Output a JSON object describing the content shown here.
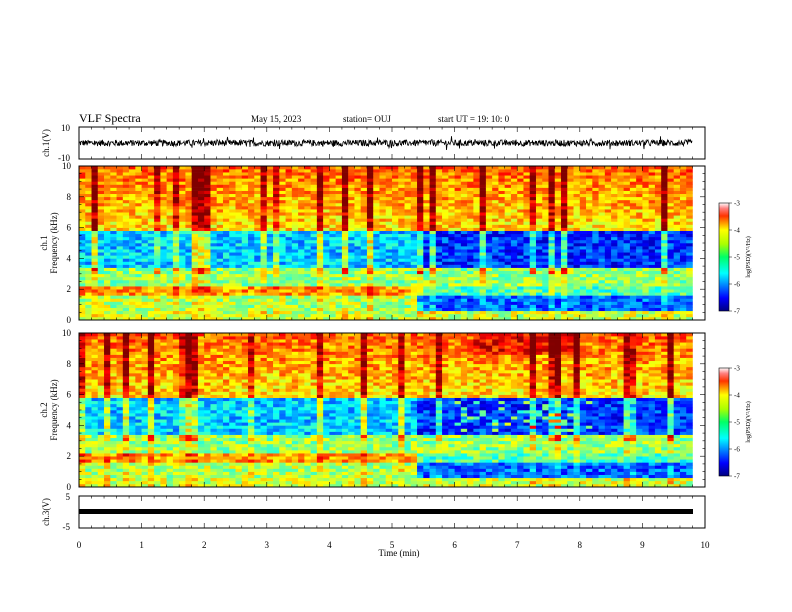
{
  "header": {
    "title": "VLF Spectra",
    "date": "May 15, 2023",
    "station": "station= OUJ",
    "start": "start  UT =   19: 10: 0"
  },
  "xaxis": {
    "label": "Time  (min)",
    "ticks": [
      "0",
      "1",
      "2",
      "3",
      "4",
      "5",
      "6",
      "7",
      "8",
      "9",
      "10"
    ]
  },
  "ch1_wave": {
    "ylabel": "ch.1(V)",
    "ticks": [
      "10",
      "-10"
    ]
  },
  "ch3_wave": {
    "ylabel": "ch.3(V)",
    "ticks": [
      "5",
      "-5"
    ]
  },
  "spec1": {
    "ylabel_ch": "ch.1",
    "ylabel": "Frequency  (kHz)",
    "ticks": [
      "0",
      "2",
      "4",
      "6",
      "8",
      "10"
    ]
  },
  "spec2": {
    "ylabel_ch": "ch.2",
    "ylabel": "Frequency  (kHz)",
    "ticks": [
      "0",
      "2",
      "4",
      "6",
      "8",
      "10"
    ]
  },
  "colorbar": {
    "label": "log(PSD)(V²/Hz)",
    "ticks": [
      "-3",
      "-4",
      "-5",
      "-6",
      "-7"
    ]
  },
  "chart_data": [
    {
      "type": "line",
      "title": "ch.1(V)",
      "xlabel": "Time  (min)",
      "ylabel": "ch.1(V)",
      "xlim": [
        0,
        10
      ],
      "ylim": [
        -10,
        10
      ],
      "series": [
        {
          "x": [
            0,
            9.8
          ],
          "values": [
            0,
            0
          ]
        }
      ],
      "note_amplitude": 2
    },
    {
      "type": "heatmap",
      "ylabel": "Frequency  (kHz)",
      "xlim": [
        0,
        10
      ],
      "ylim": [
        0,
        10
      ],
      "zlim": [
        -7,
        -3
      ],
      "zlabel": "log(PSD)(V²/Hz)",
      "time_extent_min": 9.8
    },
    {
      "type": "heatmap",
      "ylabel": "Frequency  (kHz)",
      "xlim": [
        0,
        10
      ],
      "ylim": [
        0,
        10
      ],
      "zlim": [
        -7,
        -3
      ],
      "zlabel": "log(PSD)(V²/Hz)",
      "time_extent_min": 9.8
    },
    {
      "type": "line",
      "ylabel": "ch.3(V)",
      "xlim": [
        0,
        10
      ],
      "ylim": [
        -5,
        5
      ],
      "series": [
        {
          "x": [
            0,
            9.8
          ],
          "values": [
            0,
            0
          ]
        }
      ]
    }
  ]
}
